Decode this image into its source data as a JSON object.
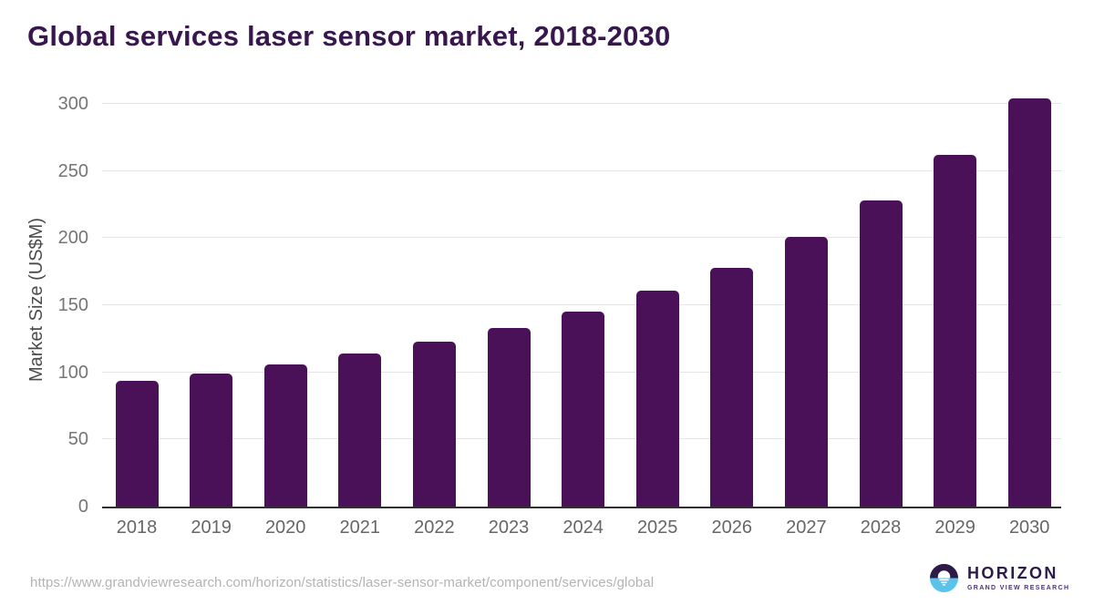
{
  "header": {
    "title": "Global services laser sensor market, 2018-2030"
  },
  "chart_data": {
    "type": "bar",
    "title": "Global services laser sensor market, 2018-2030",
    "categories": [
      "2018",
      "2019",
      "2020",
      "2021",
      "2022",
      "2023",
      "2024",
      "2025",
      "2026",
      "2027",
      "2028",
      "2029",
      "2030"
    ],
    "values": [
      94,
      99,
      106,
      114,
      123,
      133,
      145,
      161,
      178,
      201,
      228,
      262,
      304
    ],
    "xlabel": "",
    "ylabel": "Market Size (US$M)",
    "yticks": [
      0,
      50,
      100,
      150,
      200,
      250,
      300
    ],
    "ylim": [
      0,
      311
    ],
    "grid": true,
    "legend": "none",
    "bar_color": "#4a1158"
  },
  "colors": {
    "title": "#38164e",
    "bar": "#4a1158",
    "gridline": "#e5e5e5",
    "axis_line": "#303030",
    "y_tick_label": "#757575",
    "x_tick_label": "#666666",
    "y_axis_title": "#4b4b4b",
    "source_text": "#b3b3b3",
    "logo_purple": "#2e1a47",
    "logo_blue": "#5bc2ea"
  },
  "footer": {
    "source_url": "https://www.grandviewresearch.com/horizon/statistics/laser-sensor-market/component/services/global",
    "logo": {
      "brand": "HORIZON",
      "tagline": "GRAND VIEW RESEARCH"
    }
  }
}
